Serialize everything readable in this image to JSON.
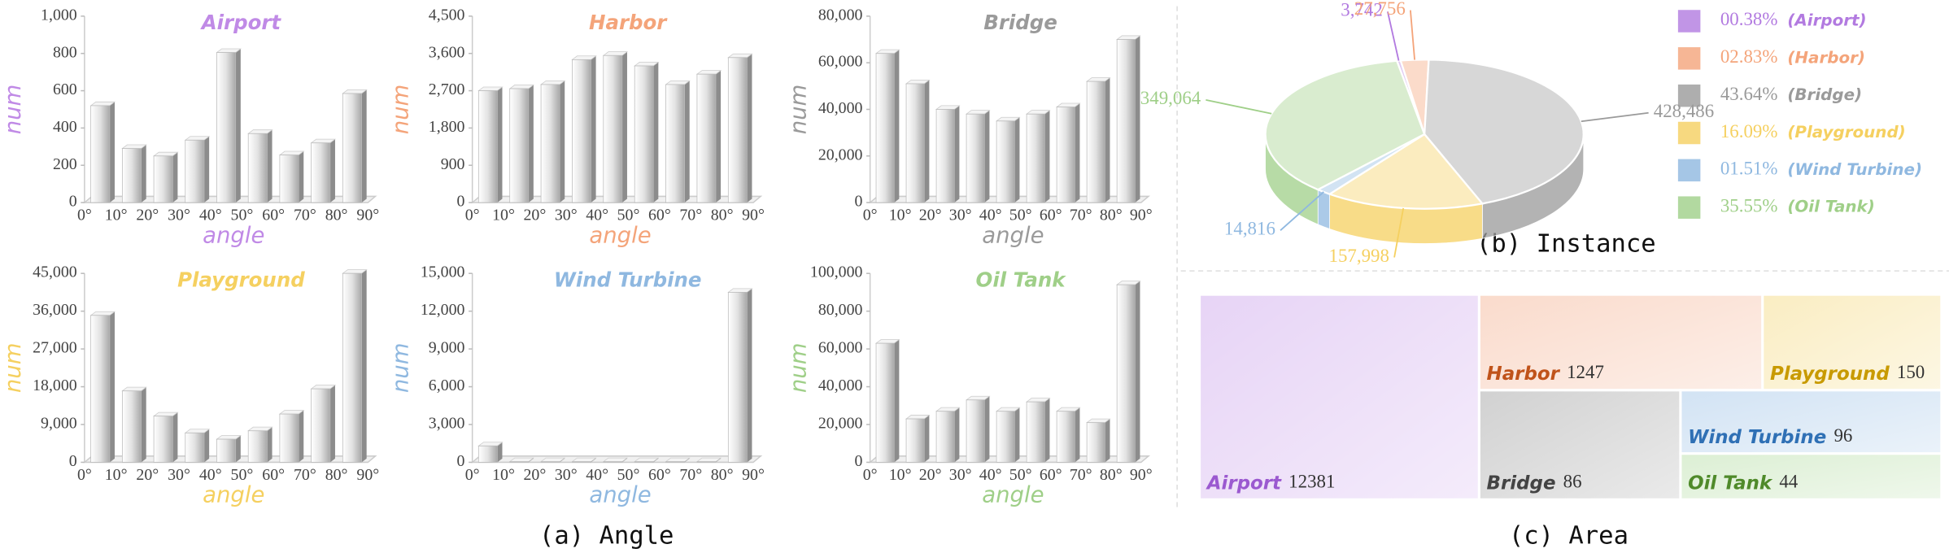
{
  "captions": [
    "(a) Angle",
    "(b) Instance",
    "(c) Area"
  ],
  "chart_data": [
    {
      "type": "histogram",
      "title": "Airport",
      "color": "#c08ae6",
      "y_label": "num",
      "x_label": "angle",
      "bins": [
        0,
        10,
        20,
        30,
        40,
        50,
        60,
        70,
        80,
        90
      ],
      "values": [
        520,
        290,
        250,
        335,
        805,
        370,
        255,
        320,
        585
      ],
      "xlim": [
        0,
        90
      ],
      "ylim": [
        0,
        1000
      ],
      "yticks": [
        0,
        200,
        400,
        600,
        800,
        {
          "value": 1000,
          "label": "1,000"
        }
      ],
      "xticks": [
        {
          "value": 0,
          "label": "0°"
        },
        {
          "value": 10,
          "label": "10°"
        },
        {
          "value": 20,
          "label": "20°"
        },
        {
          "value": 30,
          "label": "30°"
        },
        {
          "value": 40,
          "label": "40°"
        },
        {
          "value": 50,
          "label": "50°"
        },
        {
          "value": 60,
          "label": "60°"
        },
        {
          "value": 70,
          "label": "70°"
        },
        {
          "value": 80,
          "label": "80°"
        },
        {
          "value": 90,
          "label": "90°"
        }
      ]
    },
    {
      "type": "histogram",
      "title": "Harbor",
      "color": "#f4a47a",
      "y_label": "num",
      "x_label": "angle",
      "bins": [
        0,
        10,
        20,
        30,
        40,
        50,
        60,
        70,
        80,
        90
      ],
      "values": [
        2700,
        2750,
        2850,
        3450,
        3550,
        3300,
        2850,
        3100,
        3500
      ],
      "xlim": [
        0,
        90
      ],
      "ylim": [
        0,
        4500
      ],
      "yticks": [
        0,
        900,
        {
          "value": 1800,
          "label": "1,800"
        },
        {
          "value": 2700,
          "label": "2,700"
        },
        {
          "value": 3600,
          "label": "3,600"
        },
        {
          "value": 4500,
          "label": "4,500"
        }
      ],
      "xticks": [
        {
          "value": 0,
          "label": "0°"
        },
        {
          "value": 10,
          "label": "10°"
        },
        {
          "value": 20,
          "label": "20°"
        },
        {
          "value": 30,
          "label": "30°"
        },
        {
          "value": 40,
          "label": "40°"
        },
        {
          "value": 50,
          "label": "50°"
        },
        {
          "value": 60,
          "label": "60°"
        },
        {
          "value": 70,
          "label": "70°"
        },
        {
          "value": 80,
          "label": "80°"
        },
        {
          "value": 90,
          "label": "90°"
        }
      ]
    },
    {
      "type": "histogram",
      "title": "Bridge",
      "color": "#9a9a9a",
      "y_label": "num",
      "x_label": "angle",
      "bins": [
        0,
        10,
        20,
        30,
        40,
        50,
        60,
        70,
        80,
        90
      ],
      "values": [
        64000,
        51000,
        40000,
        38000,
        35000,
        38000,
        41000,
        52000,
        70000
      ],
      "xlim": [
        0,
        90
      ],
      "ylim": [
        0,
        80000
      ],
      "yticks": [
        0,
        {
          "value": 20000,
          "label": "20,000"
        },
        {
          "value": 40000,
          "label": "40,000"
        },
        {
          "value": 60000,
          "label": "60,000"
        },
        {
          "value": 80000,
          "label": "80,000"
        }
      ],
      "xticks": [
        {
          "value": 0,
          "label": "0°"
        },
        {
          "value": 10,
          "label": "10°"
        },
        {
          "value": 20,
          "label": "20°"
        },
        {
          "value": 30,
          "label": "30°"
        },
        {
          "value": 40,
          "label": "40°"
        },
        {
          "value": 50,
          "label": "50°"
        },
        {
          "value": 60,
          "label": "60°"
        },
        {
          "value": 70,
          "label": "70°"
        },
        {
          "value": 80,
          "label": "80°"
        },
        {
          "value": 90,
          "label": "90°"
        }
      ]
    },
    {
      "type": "histogram",
      "title": "Playground",
      "color": "#f5d060",
      "y_label": "num",
      "x_label": "angle",
      "bins": [
        0,
        10,
        20,
        30,
        40,
        50,
        60,
        70,
        80,
        90
      ],
      "values": [
        35000,
        17000,
        11000,
        7000,
        5500,
        7500,
        11500,
        17500,
        45000
      ],
      "xlim": [
        0,
        90
      ],
      "ylim": [
        0,
        45000
      ],
      "yticks": [
        0,
        {
          "value": 9000,
          "label": "9,000"
        },
        {
          "value": 18000,
          "label": "18,000"
        },
        {
          "value": 27000,
          "label": "27,000"
        },
        {
          "value": 36000,
          "label": "36,000"
        },
        {
          "value": 45000,
          "label": "45,000"
        }
      ],
      "xticks": [
        {
          "value": 0,
          "label": "0°"
        },
        {
          "value": 10,
          "label": "10°"
        },
        {
          "value": 20,
          "label": "20°"
        },
        {
          "value": 30,
          "label": "30°"
        },
        {
          "value": 40,
          "label": "40°"
        },
        {
          "value": 50,
          "label": "50°"
        },
        {
          "value": 60,
          "label": "60°"
        },
        {
          "value": 70,
          "label": "70°"
        },
        {
          "value": 80,
          "label": "80°"
        },
        {
          "value": 90,
          "label": "90°"
        }
      ]
    },
    {
      "type": "histogram",
      "title": "Wind Turbine",
      "color": "#8fb8e0",
      "y_label": "num",
      "x_label": "angle",
      "bins": [
        0,
        10,
        20,
        30,
        40,
        50,
        60,
        70,
        80,
        90
      ],
      "values": [
        1300,
        50,
        50,
        50,
        50,
        50,
        50,
        50,
        13500
      ],
      "xlim": [
        0,
        90
      ],
      "ylim": [
        0,
        15000
      ],
      "yticks": [
        0,
        {
          "value": 3000,
          "label": "3,000"
        },
        {
          "value": 6000,
          "label": "6,000"
        },
        {
          "value": 9000,
          "label": "9,000"
        },
        {
          "value": 12000,
          "label": "12,000"
        },
        {
          "value": 15000,
          "label": "15,000"
        }
      ],
      "xticks": [
        {
          "value": 0,
          "label": "0°"
        },
        {
          "value": 10,
          "label": "10°"
        },
        {
          "value": 20,
          "label": "20°"
        },
        {
          "value": 30,
          "label": "30°"
        },
        {
          "value": 40,
          "label": "40°"
        },
        {
          "value": 50,
          "label": "50°"
        },
        {
          "value": 60,
          "label": "60°"
        },
        {
          "value": 70,
          "label": "70°"
        },
        {
          "value": 80,
          "label": "80°"
        },
        {
          "value": 90,
          "label": "90°"
        }
      ]
    },
    {
      "type": "histogram",
      "title": "Oil Tank",
      "color": "#9fcf88",
      "y_label": "num",
      "x_label": "angle",
      "bins": [
        0,
        10,
        20,
        30,
        40,
        50,
        60,
        70,
        80,
        90
      ],
      "values": [
        63000,
        23000,
        27000,
        33000,
        27000,
        32000,
        27000,
        21000,
        94000
      ],
      "xlim": [
        0,
        90
      ],
      "ylim": [
        0,
        100000
      ],
      "yticks": [
        0,
        {
          "value": 20000,
          "label": "20,000"
        },
        {
          "value": 40000,
          "label": "40,000"
        },
        {
          "value": 60000,
          "label": "60,000"
        },
        {
          "value": 80000,
          "label": "80,000"
        },
        {
          "value": 100000,
          "label": "100,000"
        }
      ],
      "xticks": [
        {
          "value": 0,
          "label": "0°"
        },
        {
          "value": 10,
          "label": "10°"
        },
        {
          "value": 20,
          "label": "20°"
        },
        {
          "value": 30,
          "label": "30°"
        },
        {
          "value": 40,
          "label": "40°"
        },
        {
          "value": 50,
          "label": "50°"
        },
        {
          "value": 60,
          "label": "60°"
        },
        {
          "value": 70,
          "label": "70°"
        },
        {
          "value": 80,
          "label": "80°"
        },
        {
          "value": 90,
          "label": "90°"
        }
      ]
    },
    {
      "type": "pie",
      "values": [
        3742,
        27756,
        428486,
        157998,
        14816,
        349064
      ],
      "value_labels": [
        "3,742",
        "27,756",
        "428,486",
        "157,998",
        "14,816",
        "349,064"
      ],
      "percents": [
        0.38,
        2.83,
        43.64,
        16.09,
        1.51,
        35.55
      ],
      "percent_labels": [
        "00.38%",
        "02.83%",
        "43.64%",
        "16.09%",
        "01.51%",
        "35.55%"
      ],
      "legend_labels": [
        "(Airport)",
        "(Harbor)",
        "(Bridge)",
        "(Playground)",
        "(Wind Turbine)",
        "(Oil Tank)"
      ],
      "colors": [
        "#b27ae0",
        "#f4a47a",
        "#9a9a9a",
        "#f5d060",
        "#8fb8e0",
        "#9fcf88"
      ]
    },
    {
      "type": "treemap",
      "categories": [
        "Airport",
        "Harbor",
        "Playground",
        "Bridge",
        "Wind Turbine",
        "Oil Tank"
      ],
      "values": [
        12381,
        1247,
        150,
        86,
        96,
        44
      ],
      "colors": [
        "#c9a0ec",
        "#f4b08e",
        "#f5d878",
        "#9a9a9a",
        "#9cc2e6",
        "#b2dca0"
      ],
      "label_colors": [
        "#9b59d0",
        "#c0531a",
        "#c89a00",
        "#444444",
        "#2f70b5",
        "#4f8a2a"
      ]
    }
  ]
}
